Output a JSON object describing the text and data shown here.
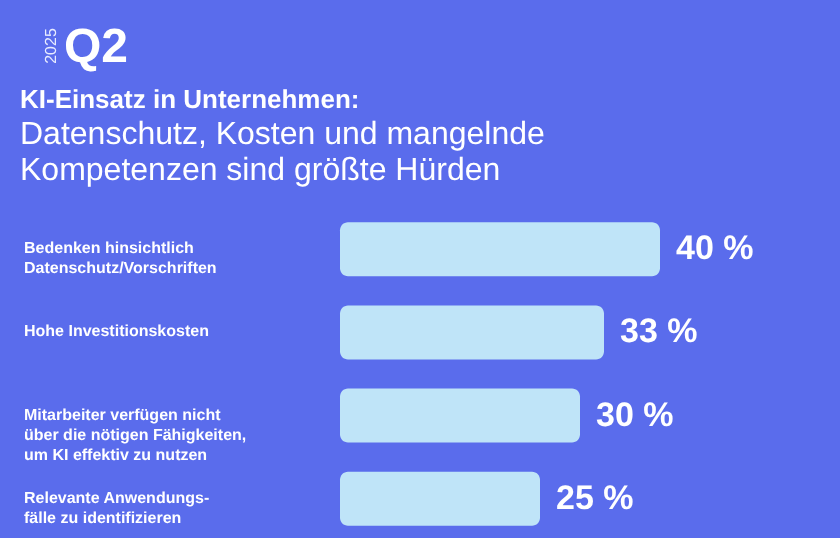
{
  "chart_data": {
    "type": "bar",
    "orientation": "horizontal",
    "title": "KI-Einsatz in Unternehmen:",
    "subtitle": "Datenschutz, Kosten und mangelnde\nKompetenzen sind größte Hürden",
    "annotations": [
      "2025",
      "Q2"
    ],
    "categories": [
      "Bedenken hinsichtlich\nDatenschutz/Vorschriften",
      "Hohe Investitionskosten",
      "Mitarbeiter verfügen nicht\nüber die nötigen Fähigkeiten,\num KI effektiv zu nutzen",
      "Relevante Anwendungs-\nfälle zu identifizieren"
    ],
    "values": [
      40,
      33,
      30,
      25
    ],
    "value_labels": [
      "40 %",
      "33 %",
      "30 %",
      "25 %"
    ],
    "color": "#bfe4f8"
  }
}
